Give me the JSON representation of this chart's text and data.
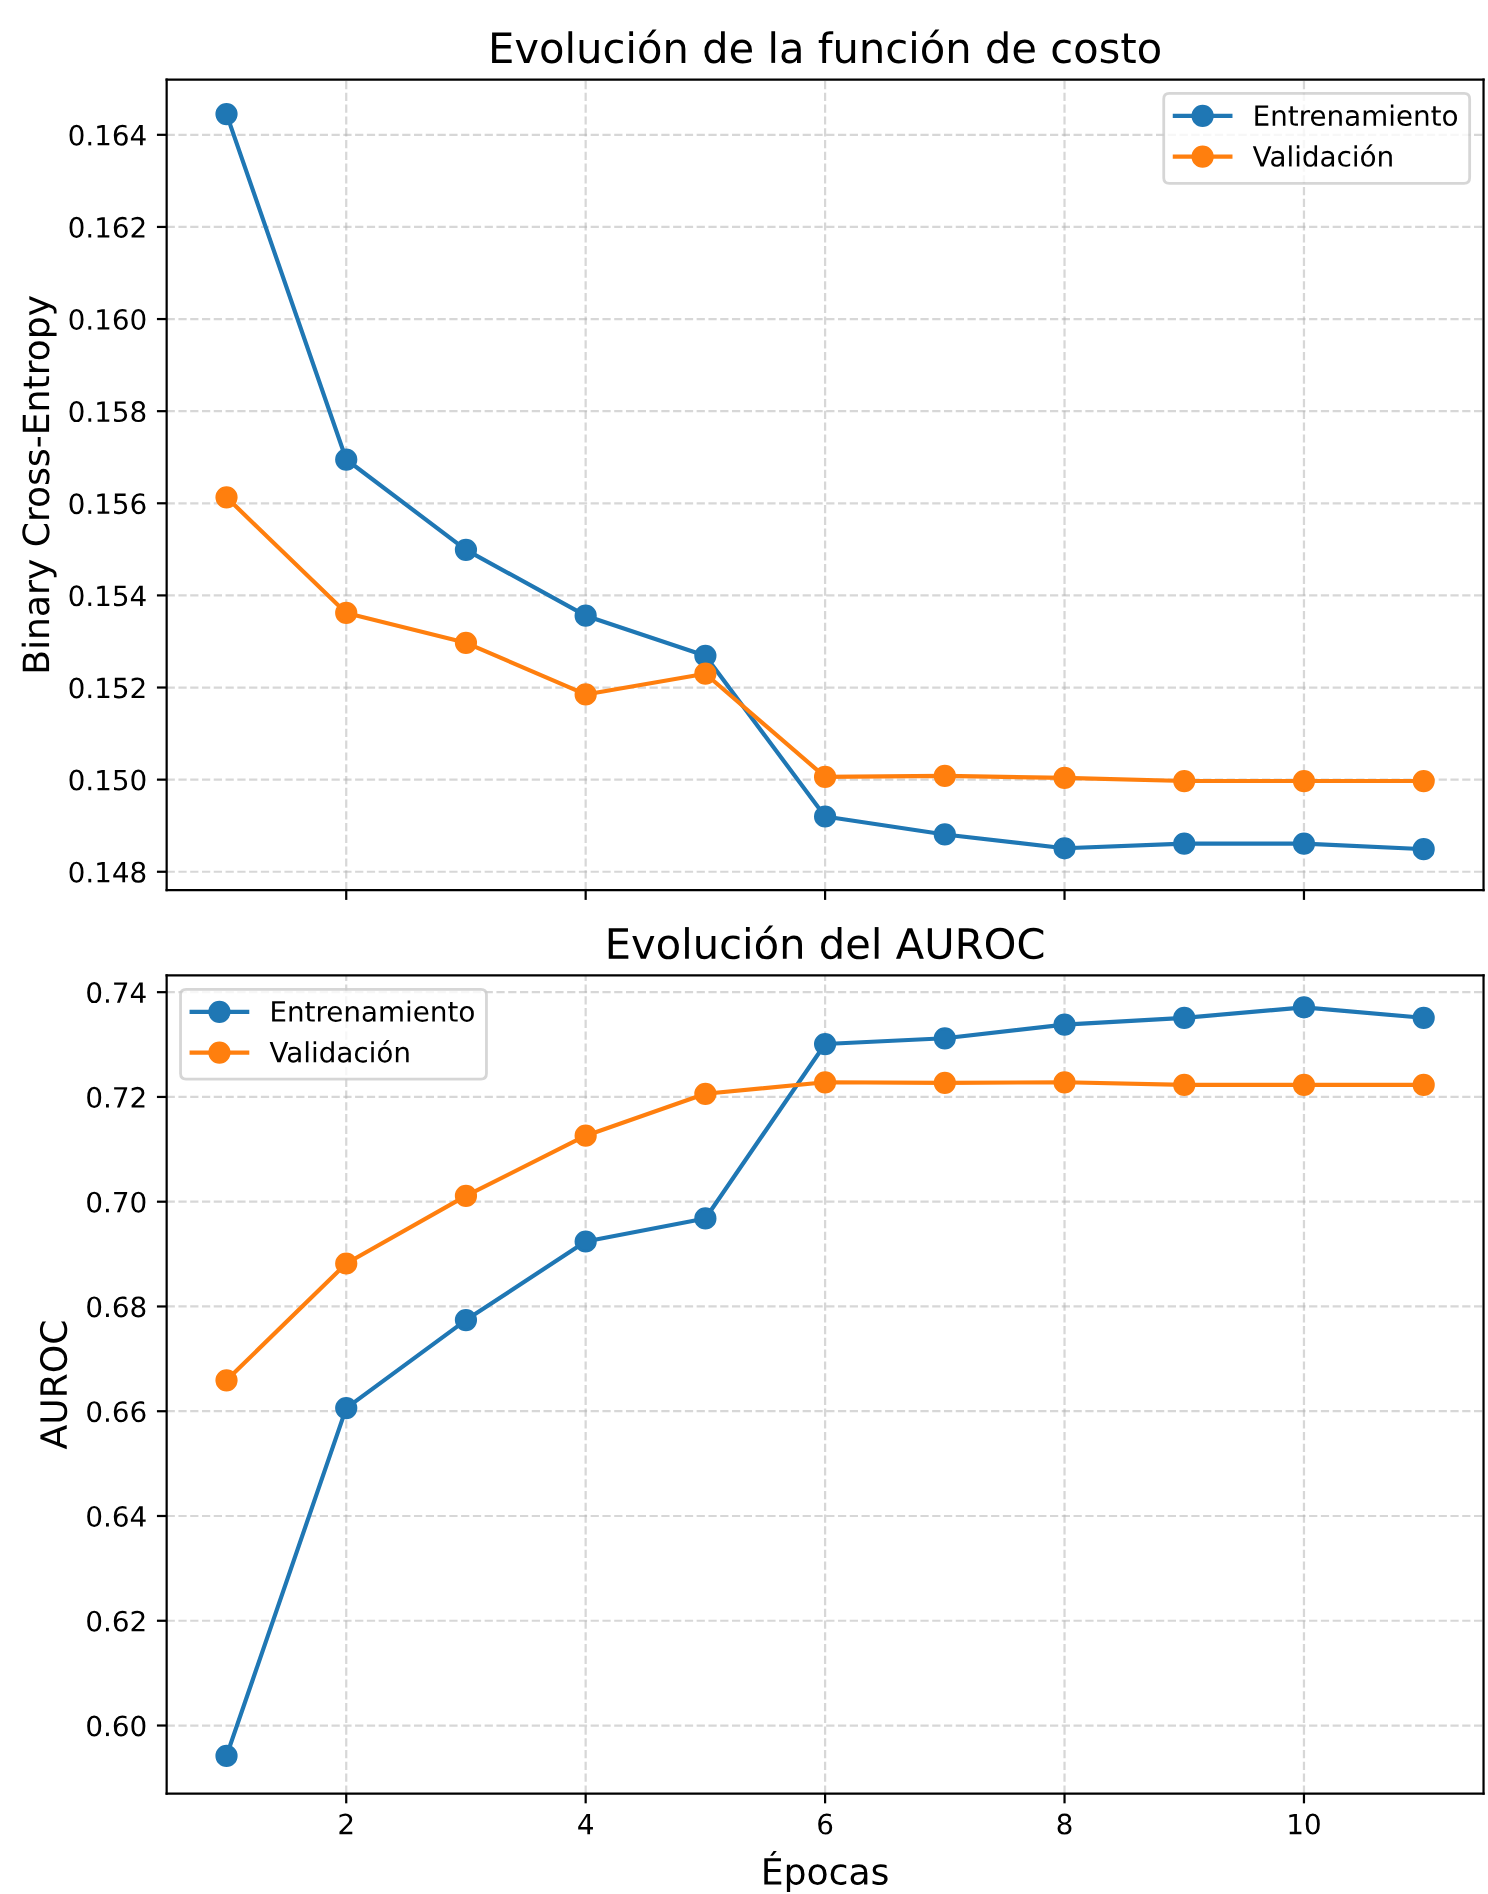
{
  "chart_data": [
    {
      "type": "line",
      "title": "Evolución de la función de costo",
      "ylabel": "Binary Cross-Entropy",
      "x": [
        1,
        2,
        3,
        4,
        5,
        6,
        7,
        8,
        9,
        10,
        11
      ],
      "series": [
        {
          "name": "Entrenamiento",
          "color": "#1f77b4",
          "values": [
            0.16445,
            0.15695,
            0.15499,
            0.15356,
            0.15269,
            0.1492,
            0.14881,
            0.14851,
            0.14861,
            0.14861,
            0.14849
          ]
        },
        {
          "name": "Validación",
          "color": "#ff7f0e",
          "values": [
            0.15613,
            0.15362,
            0.15297,
            0.15185,
            0.1523,
            0.15006,
            0.15008,
            0.15004,
            0.14997,
            0.14997,
            0.14997
          ]
        }
      ],
      "xlim": [
        0.5,
        11.5
      ],
      "xticks": [
        2,
        4,
        6,
        8,
        10
      ],
      "ylim": [
        0.1476,
        0.1652
      ],
      "yticks": [
        0.148,
        {
          "value": 0.15,
          "label": "0.150"
        },
        0.152,
        0.154,
        0.156,
        0.158,
        {
          "value": 0.16,
          "label": "0.160"
        },
        0.162,
        0.164
      ],
      "tick_labels": "y",
      "grid": true,
      "legend": "top right",
      "marker": "circle",
      "line_style": "solid"
    },
    {
      "type": "line",
      "title": "Evolución del AUROC",
      "xlabel": "Épocas",
      "ylabel": "AUROC",
      "x": [
        1,
        2,
        3,
        4,
        5,
        6,
        7,
        8,
        9,
        10,
        11
      ],
      "series": [
        {
          "name": "Entrenamiento",
          "color": "#1f77b4",
          "values": [
            0.5942,
            0.6606,
            0.6774,
            0.6924,
            0.6968,
            0.7301,
            0.7312,
            0.7338,
            0.7351,
            0.7371,
            0.7351
          ]
        },
        {
          "name": "Validación",
          "color": "#ff7f0e",
          "values": [
            0.6659,
            0.6882,
            0.7011,
            0.7126,
            0.7206,
            0.7228,
            0.7227,
            0.7228,
            0.7223,
            0.7223,
            0.7223
          ]
        }
      ],
      "xlim": [
        0.5,
        11.5
      ],
      "xticks": [
        2,
        4,
        6,
        8,
        10
      ],
      "ylim": [
        0.587,
        0.7432
      ],
      "yticks": [
        {
          "value": 0.6,
          "label": "0.60"
        },
        0.62,
        0.64,
        0.66,
        0.68,
        {
          "value": 0.7,
          "label": "0.70"
        },
        0.72,
        0.74
      ],
      "grid": true,
      "legend": "top left",
      "marker": "circle",
      "line_style": "solid"
    }
  ]
}
